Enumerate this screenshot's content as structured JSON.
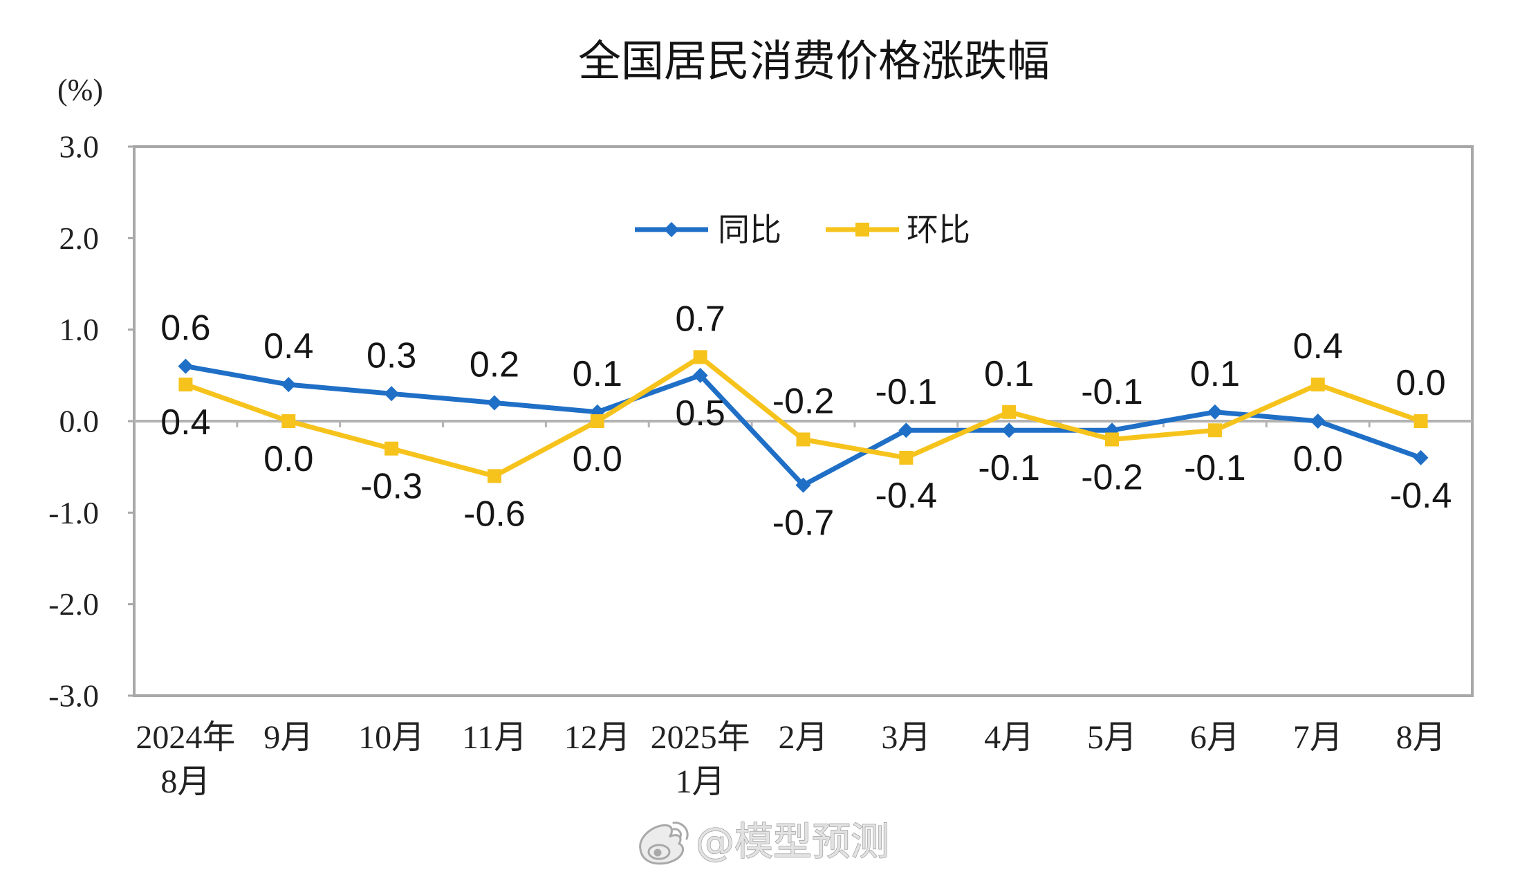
{
  "chart_data": {
    "type": "line",
    "title": "全国居民消费价格涨跌幅",
    "ylabel": "(%)",
    "categories": [
      [
        "2024年",
        "8月"
      ],
      [
        "9月"
      ],
      [
        "10月"
      ],
      [
        "11月"
      ],
      [
        "12月"
      ],
      [
        "2025年",
        "1月"
      ],
      [
        "2月"
      ],
      [
        "3月"
      ],
      [
        "4月"
      ],
      [
        "5月"
      ],
      [
        "6月"
      ],
      [
        "7月"
      ],
      [
        "8月"
      ]
    ],
    "ylim": [
      -3,
      3
    ],
    "yticks": [
      3,
      2,
      1,
      0,
      -1,
      -2,
      -3
    ],
    "ytick_labels": [
      "3.0",
      "2.0",
      "1.0",
      "0.0",
      "-1.0",
      "-2.0",
      "-3.0"
    ],
    "grid": false,
    "legend": "top-center",
    "series": [
      {
        "name": "同比",
        "color": "#1F6FC6",
        "marker": "diamond",
        "values": [
          0.6,
          0.4,
          0.3,
          0.2,
          0.1,
          0.5,
          -0.7,
          -0.1,
          -0.1,
          -0.1,
          0.1,
          0.0,
          -0.4
        ],
        "labels": [
          "0.6",
          "0.4",
          "0.3",
          "0.2",
          "0.1",
          "0.5",
          "-0.7",
          "-0.1",
          "-0.1",
          "-0.1",
          "0.1",
          "0.0",
          "-0.4"
        ]
      },
      {
        "name": "环比",
        "color": "#F6C31C",
        "marker": "square",
        "values": [
          0.4,
          0.0,
          -0.3,
          -0.6,
          0.0,
          0.7,
          -0.2,
          -0.4,
          0.1,
          -0.2,
          -0.1,
          0.4,
          0.0
        ],
        "labels": [
          "0.4",
          "0.0",
          "-0.3",
          "-0.6",
          "0.0",
          "0.7",
          "-0.2",
          "-0.4",
          "0.1",
          "-0.2",
          "-0.1",
          "0.4",
          "0.0"
        ]
      }
    ]
  },
  "watermark": {
    "text": "@模型预测",
    "icon": "weibo-logo-icon"
  }
}
